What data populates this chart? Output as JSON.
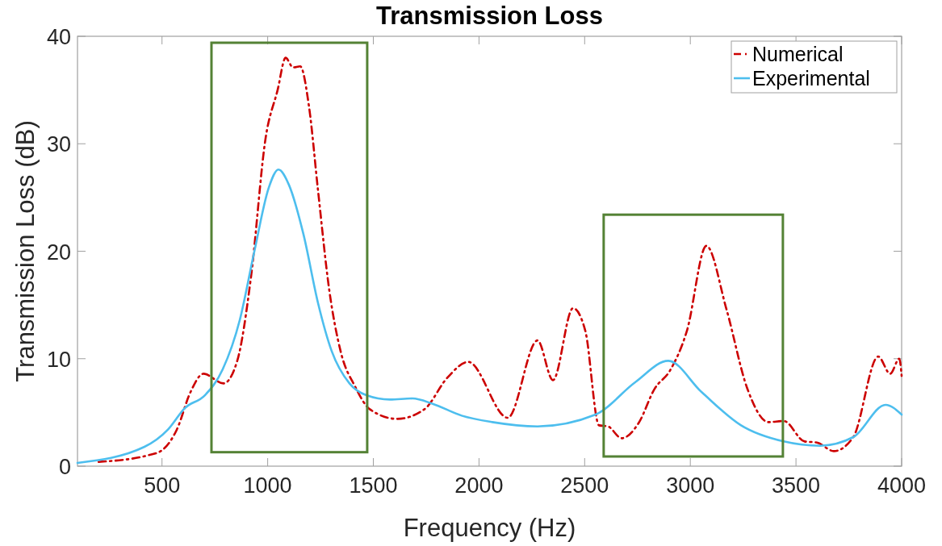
{
  "chart_data": {
    "type": "line",
    "title": "Transmission Loss",
    "xlabel": "Frequency (Hz)",
    "ylabel": "Transmission Loss (dB)",
    "xlim": [
      100,
      4000
    ],
    "xticks": [
      500,
      1000,
      1500,
      2000,
      2500,
      3000,
      3500,
      4000
    ],
    "ylim": [
      0,
      40
    ],
    "yticks": [
      0,
      10,
      20,
      30,
      40
    ],
    "grid": false,
    "legend": "top right",
    "series": [
      {
        "name": "Numerical",
        "color": "#cc0000",
        "line_style": "dashdot",
        "x": [
          200,
          432,
          501,
          570,
          635,
          696,
          791,
          856,
          921,
          990,
          1047,
          1085,
          1120,
          1154,
          1196,
          1238,
          1292,
          1345,
          1414,
          1483,
          1613,
          1742,
          1849,
          1949,
          2136,
          2277,
          2350,
          2445,
          2503,
          2568,
          2610,
          2675,
          2755,
          2831,
          2904,
          2984,
          3076,
          3171,
          3270,
          3370,
          3442,
          3541,
          3599,
          3679,
          3771,
          3889,
          3946,
          3989,
          4000
        ],
        "values": [
          0.4,
          1.0,
          1.5,
          3.4,
          6.9,
          8.6,
          7.7,
          9.8,
          17.6,
          30.5,
          35.0,
          38.0,
          37.1,
          37.2,
          33.4,
          25.7,
          16.3,
          10.7,
          7.4,
          5.3,
          4.4,
          5.3,
          8.2,
          9.7,
          4.5,
          11.7,
          8.0,
          14.7,
          12.6,
          3.8,
          3.7,
          2.6,
          4.0,
          7.2,
          8.9,
          12.6,
          20.5,
          14.6,
          7.2,
          4.1,
          4.2,
          2.3,
          2.2,
          1.4,
          2.7,
          10.2,
          8.6,
          10.0,
          8.4
        ]
      },
      {
        "name": "Experimental",
        "color": "#4dbeee",
        "line_style": "solid",
        "x": [
          100,
          417,
          528,
          608,
          703,
          787,
          868,
          937,
          1005,
          1051,
          1100,
          1169,
          1238,
          1303,
          1387,
          1467,
          1578,
          1685,
          1781,
          1918,
          2063,
          2277,
          2552,
          2739,
          2896,
          3053,
          3240,
          3442,
          3614,
          3771,
          3924,
          4000
        ],
        "values": [
          0.3,
          1.8,
          3.4,
          5.4,
          6.6,
          9.0,
          13.6,
          20.0,
          25.9,
          27.6,
          26.2,
          21.6,
          15.2,
          10.7,
          7.7,
          6.6,
          6.2,
          6.3,
          5.8,
          4.7,
          4.1,
          3.7,
          4.8,
          7.8,
          9.8,
          6.9,
          3.8,
          2.3,
          1.9,
          2.7,
          5.7,
          4.8
        ]
      }
    ]
  }
}
